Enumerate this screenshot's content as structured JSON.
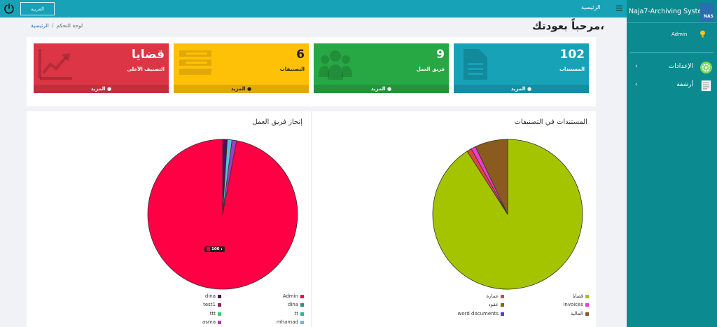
{
  "topbar": {
    "language_label": "العربية",
    "home_label": "الرئيسية"
  },
  "sidebar": {
    "title": "Naja7-Archiving System",
    "logo_text": "NAS",
    "user": "Admin",
    "items": [
      {
        "label": "الإعدادات",
        "icon": "settings-gear-icon"
      },
      {
        "label": "أرشفة",
        "icon": "archive-icon"
      }
    ]
  },
  "header": {
    "welcome": "مرحباً بعودتك،",
    "breadcrumb": {
      "home": "الرئيسية",
      "separator": "/",
      "current": "لوحة التحكم"
    }
  },
  "cards": [
    {
      "value": "102",
      "label": "المستندات",
      "more": "المزيد",
      "color": "#17a2b8",
      "icon": "document-icon"
    },
    {
      "value": "9",
      "label": "فريق العمل",
      "more": "المزيد",
      "color": "#28a745",
      "icon": "team-icon"
    },
    {
      "value": "6",
      "label": "التصنيفات",
      "more": "المزيد",
      "color": "#ffc107",
      "icon": "categories-icon"
    },
    {
      "value": "قضايا",
      "label": "التصنيف الأعلى",
      "more": "المزيد",
      "color": "#dc3545",
      "icon": "trend-up-icon"
    }
  ],
  "charts": {
    "docs_title": "المستندات في التصنيفات",
    "team_title": "إنجاز فريق العمل",
    "tooltip": "100 :"
  },
  "chart_data": [
    {
      "type": "pie",
      "title": "المستندات في التصنيفات",
      "slices": [
        {
          "label": "قضايا",
          "value": 90,
          "color": "#a4c400"
        },
        {
          "label": "عمارة",
          "value": 1,
          "color": "#e0463c"
        },
        {
          "label": "Invoices",
          "value": 1,
          "color": "#f03ccf"
        },
        {
          "label": "عقود",
          "value": 0,
          "color": "#8a6214"
        },
        {
          "label": "المالية",
          "value": 7,
          "color": "#8a5a1e"
        },
        {
          "label": "word documents",
          "value": 0,
          "color": "#5b3cd6"
        }
      ]
    },
    {
      "type": "pie",
      "title": "إنجاز فريق العمل",
      "slices": [
        {
          "label": "Admin",
          "value": 97,
          "color": "#ff0044"
        },
        {
          "label": "dina",
          "value": 1,
          "color": "#4a1060"
        },
        {
          "label": "dina",
          "value": 0,
          "color": "#2f8f83"
        },
        {
          "label": "test1",
          "value": 0,
          "color": "#8a2b56"
        },
        {
          "label": "tt",
          "value": 0,
          "color": "#35b3a0"
        },
        {
          "label": "ttt",
          "value": 0,
          "color": "#3ccf72"
        },
        {
          "label": "mhamad",
          "value": 1,
          "color": "#59c2d6"
        },
        {
          "label": "asma",
          "value": 1,
          "color": "#a43cc2"
        }
      ]
    }
  ]
}
